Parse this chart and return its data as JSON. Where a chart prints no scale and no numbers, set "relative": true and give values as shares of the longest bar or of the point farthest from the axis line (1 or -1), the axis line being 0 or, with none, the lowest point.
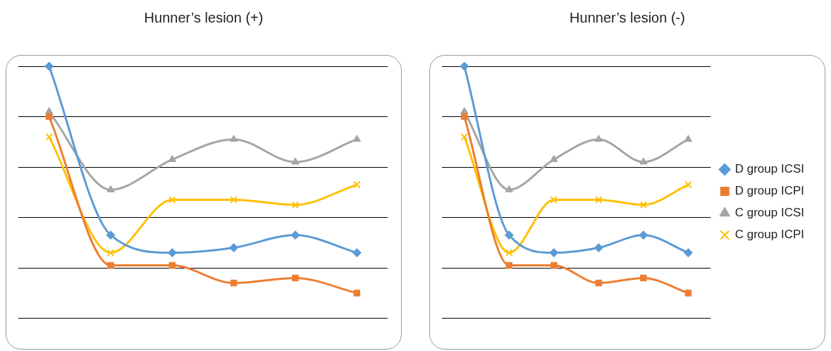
{
  "chart_data": [
    {
      "type": "line",
      "title": "Hunner’s lesion (+)",
      "relative": true,
      "grid": "y",
      "legend": false,
      "categories": [
        null,
        null,
        null,
        null,
        null,
        null
      ],
      "series": [
        {
          "color": "#5b9bd5",
          "marker": "diamond",
          "values": [
            1,
            0.33,
            0.26,
            0.28,
            0.33,
            0.26
          ]
        },
        {
          "color": "#ed7d31",
          "marker": "square",
          "values": [
            0.8,
            0.21,
            0.21,
            0.14,
            0.16,
            0.1
          ]
        },
        {
          "color": "#a5a5a5",
          "marker": "triangle",
          "values": [
            0.82,
            0.51,
            0.63,
            0.71,
            0.62,
            0.71
          ]
        },
        {
          "color": "#ffc000",
          "marker": "cross",
          "values": [
            0.72,
            0.26,
            0.47,
            0.47,
            0.45,
            0.53
          ]
        }
      ]
    },
    {
      "type": "line",
      "title": "Hunner’s lesion (-)",
      "relative": true,
      "grid": "y",
      "legend": "right",
      "categories": [
        null,
        null,
        null,
        null,
        null,
        null
      ],
      "series": [
        {
          "name": "D group ICSI",
          "color": "#5b9bd5",
          "marker": "diamond",
          "values": [
            1,
            0.33,
            0.26,
            0.28,
            0.33,
            0.26
          ]
        },
        {
          "name": "D group ICPI",
          "color": "#ed7d31",
          "marker": "square",
          "values": [
            0.8,
            0.21,
            0.21,
            0.14,
            0.16,
            0.1
          ]
        },
        {
          "name": "C group ICSI",
          "color": "#a5a5a5",
          "marker": "triangle",
          "values": [
            0.82,
            0.51,
            0.63,
            0.71,
            0.62,
            0.71
          ]
        },
        {
          "name": "C group ICPI",
          "color": "#ffc000",
          "marker": "cross",
          "values": [
            0.72,
            0.26,
            0.47,
            0.47,
            0.45,
            0.53
          ]
        }
      ]
    }
  ]
}
